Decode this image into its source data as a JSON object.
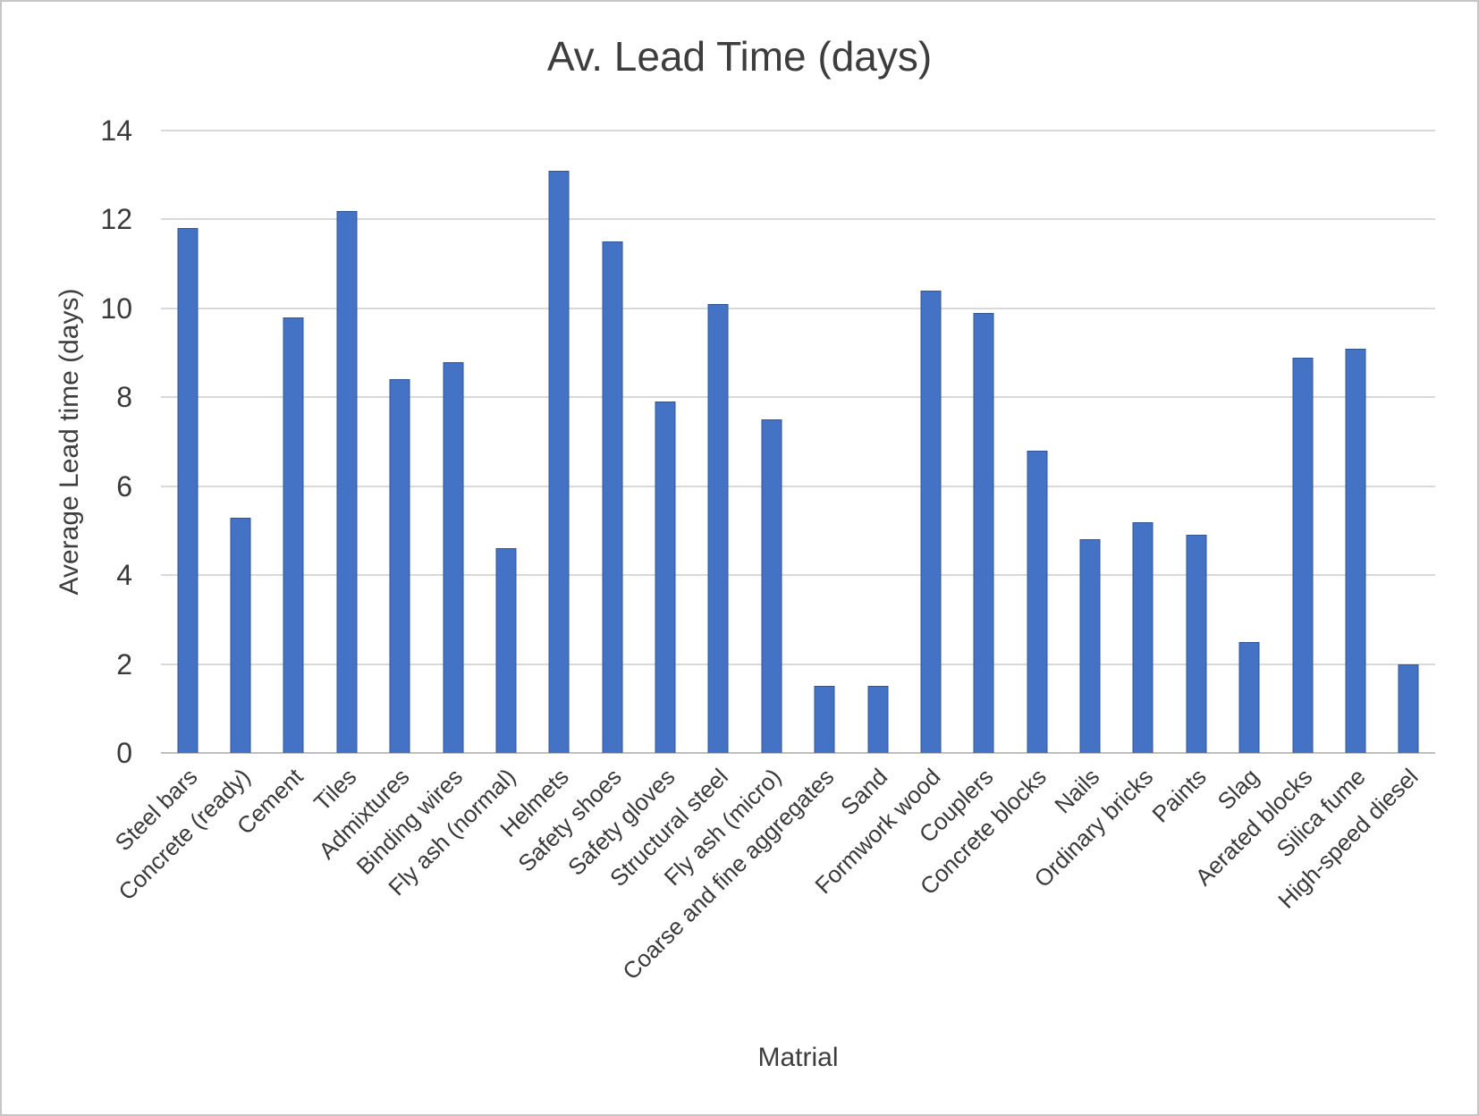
{
  "chart_data": {
    "type": "bar",
    "title": "Av. Lead Time (days)",
    "xlabel": "Matrial",
    "ylabel": "Average Lead time (days)",
    "ylim": [
      0,
      14
    ],
    "yticks": [
      0,
      2,
      4,
      6,
      8,
      10,
      12,
      14
    ],
    "grid": true,
    "legend": false,
    "bar_color": "#4472C4",
    "bar_border_color": "#2F5597",
    "gridline_color": "#D9D9D9",
    "categories": [
      "Steel bars",
      "Concrete (ready)",
      "Cement",
      "Tiles",
      "Admixtures",
      "Binding wires",
      "Fly ash (normal)",
      "Helmets",
      "Safety shoes",
      "Safety gloves",
      "Structural steel",
      "Fly ash (micro)",
      "Coarse and fine aggregates",
      "Sand",
      "Formwork wood",
      "Couplers",
      "Concrete blocks",
      "Nails",
      "Ordinary bricks",
      "Paints",
      "Slag",
      "Aerated blocks",
      "Silica fume",
      "High-speed diesel"
    ],
    "values": [
      11.8,
      5.3,
      9.8,
      12.2,
      8.4,
      8.8,
      4.6,
      13.1,
      11.5,
      7.9,
      10.1,
      7.5,
      1.5,
      1.5,
      10.4,
      9.9,
      6.8,
      4.8,
      5.2,
      4.9,
      2.5,
      8.9,
      9.1,
      2.0
    ]
  }
}
